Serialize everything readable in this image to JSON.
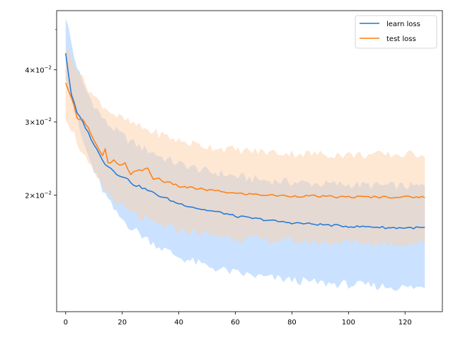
{
  "chart_data": {
    "type": "line",
    "title": "",
    "xlabel": "",
    "ylabel": "",
    "xlim": [
      -3.2,
      133.2
    ],
    "ylim": [
      0.0105,
      0.0555
    ],
    "yscale": "log",
    "grid": false,
    "legend_position": "top-right",
    "x_ticks": [
      0,
      20,
      40,
      60,
      80,
      100,
      120
    ],
    "x_tick_labels": [
      "0",
      "20",
      "40",
      "60",
      "80",
      "100",
      "120"
    ],
    "y_ticks": [
      {
        "value": 0.02,
        "base": "2",
        "exponent": "−2"
      },
      {
        "value": 0.03,
        "base": "3",
        "exponent": "−2"
      },
      {
        "value": 0.04,
        "base": "4",
        "exponent": "−2"
      }
    ],
    "y_minor_ticks": [
      0.05
    ],
    "tick_mult": "×10",
    "series": [
      {
        "name": "learn loss",
        "color": "#1f77d8",
        "band_color": "#9ecbff",
        "mean": [
          [
            0,
            0.044
          ],
          [
            1,
            0.039
          ],
          [
            2,
            0.035
          ],
          [
            4,
            0.0315
          ],
          [
            6,
            0.03
          ],
          [
            8,
            0.0282
          ],
          [
            10,
            0.0265
          ],
          [
            12,
            0.025
          ],
          [
            14,
            0.0238
          ],
          [
            16,
            0.0232
          ],
          [
            18,
            0.0225
          ],
          [
            20,
            0.0222
          ],
          [
            22,
            0.0218
          ],
          [
            24,
            0.0212
          ],
          [
            26,
            0.021
          ],
          [
            28,
            0.0207
          ],
          [
            30,
            0.0204
          ],
          [
            32,
            0.0201
          ],
          [
            34,
            0.0198
          ],
          [
            36,
            0.0196
          ],
          [
            38,
            0.0193
          ],
          [
            40,
            0.0191
          ],
          [
            44,
            0.0188
          ],
          [
            48,
            0.0185
          ],
          [
            52,
            0.0183
          ],
          [
            56,
            0.0181
          ],
          [
            60,
            0.0178
          ],
          [
            66,
            0.0176
          ],
          [
            72,
            0.0174
          ],
          [
            78,
            0.0172
          ],
          [
            84,
            0.0171
          ],
          [
            90,
            0.017
          ],
          [
            96,
            0.0169
          ],
          [
            102,
            0.0168
          ],
          [
            108,
            0.0168
          ],
          [
            114,
            0.0167
          ],
          [
            120,
            0.0167
          ],
          [
            127,
            0.0167
          ]
        ],
        "upper": [
          [
            0,
            0.054
          ],
          [
            3,
            0.043
          ],
          [
            6,
            0.037
          ],
          [
            10,
            0.033
          ],
          [
            14,
            0.03
          ],
          [
            18,
            0.0285
          ],
          [
            22,
            0.0272
          ],
          [
            26,
            0.0262
          ],
          [
            30,
            0.0255
          ],
          [
            35,
            0.0245
          ],
          [
            40,
            0.0238
          ],
          [
            50,
            0.0228
          ],
          [
            60,
            0.0222
          ],
          [
            70,
            0.0217
          ],
          [
            80,
            0.0215
          ],
          [
            90,
            0.0213
          ],
          [
            100,
            0.0212
          ],
          [
            110,
            0.0211
          ],
          [
            120,
            0.021
          ],
          [
            127,
            0.021
          ]
        ],
        "lower": [
          [
            0,
            0.039
          ],
          [
            3,
            0.032
          ],
          [
            6,
            0.027
          ],
          [
            10,
            0.0228
          ],
          [
            14,
            0.02
          ],
          [
            18,
            0.018
          ],
          [
            22,
            0.017
          ],
          [
            26,
            0.0162
          ],
          [
            30,
            0.0155
          ],
          [
            35,
            0.0148
          ],
          [
            40,
            0.0142
          ],
          [
            50,
            0.0135
          ],
          [
            60,
            0.013
          ],
          [
            70,
            0.0127
          ],
          [
            80,
            0.0125
          ],
          [
            90,
            0.0123
          ],
          [
            100,
            0.0122
          ],
          [
            110,
            0.0121
          ],
          [
            120,
            0.012
          ],
          [
            127,
            0.012
          ]
        ]
      },
      {
        "name": "test loss",
        "color": "#ff7f0e",
        "band_color": "#fdd0a8",
        "mean": [
          [
            0,
            0.037
          ],
          [
            1,
            0.0355
          ],
          [
            2,
            0.0345
          ],
          [
            3,
            0.033
          ],
          [
            4,
            0.0305
          ],
          [
            6,
            0.0305
          ],
          [
            8,
            0.029
          ],
          [
            10,
            0.027
          ],
          [
            12,
            0.0255
          ],
          [
            13,
            0.0248
          ],
          [
            14,
            0.0258
          ],
          [
            15,
            0.0238
          ],
          [
            17,
            0.0242
          ],
          [
            19,
            0.0235
          ],
          [
            21,
            0.0238
          ],
          [
            23,
            0.0225
          ],
          [
            25,
            0.023
          ],
          [
            27,
            0.0228
          ],
          [
            29,
            0.0233
          ],
          [
            31,
            0.0218
          ],
          [
            33,
            0.022
          ],
          [
            35,
            0.0215
          ],
          [
            38,
            0.0213
          ],
          [
            40,
            0.021
          ],
          [
            45,
            0.0208
          ],
          [
            50,
            0.0206
          ],
          [
            55,
            0.0204
          ],
          [
            60,
            0.0202
          ],
          [
            66,
            0.0201
          ],
          [
            72,
            0.02
          ],
          [
            80,
            0.0199
          ],
          [
            88,
            0.0199
          ],
          [
            96,
            0.0198
          ],
          [
            104,
            0.0198
          ],
          [
            112,
            0.0198
          ],
          [
            120,
            0.0198
          ],
          [
            127,
            0.0198
          ]
        ],
        "upper": [
          [
            0,
            0.045
          ],
          [
            3,
            0.042
          ],
          [
            6,
            0.038
          ],
          [
            10,
            0.0345
          ],
          [
            14,
            0.0325
          ],
          [
            18,
            0.031
          ],
          [
            22,
            0.03
          ],
          [
            26,
            0.0292
          ],
          [
            30,
            0.0285
          ],
          [
            35,
            0.0278
          ],
          [
            40,
            0.027
          ],
          [
            50,
            0.0262
          ],
          [
            60,
            0.0257
          ],
          [
            70,
            0.0254
          ],
          [
            80,
            0.0252
          ],
          [
            90,
            0.0251
          ],
          [
            100,
            0.025
          ],
          [
            110,
            0.025
          ],
          [
            120,
            0.025
          ],
          [
            127,
            0.0252
          ]
        ],
        "lower": [
          [
            0,
            0.031
          ],
          [
            3,
            0.028
          ],
          [
            6,
            0.025
          ],
          [
            10,
            0.0225
          ],
          [
            14,
            0.0205
          ],
          [
            18,
            0.0192
          ],
          [
            22,
            0.0183
          ],
          [
            26,
            0.0177
          ],
          [
            30,
            0.0172
          ],
          [
            35,
            0.0168
          ],
          [
            40,
            0.0165
          ],
          [
            50,
            0.0161
          ],
          [
            60,
            0.0158
          ],
          [
            70,
            0.0156
          ],
          [
            80,
            0.0155
          ],
          [
            90,
            0.0154
          ],
          [
            100,
            0.0154
          ],
          [
            110,
            0.0153
          ],
          [
            120,
            0.0153
          ],
          [
            127,
            0.0153
          ]
        ]
      }
    ]
  }
}
